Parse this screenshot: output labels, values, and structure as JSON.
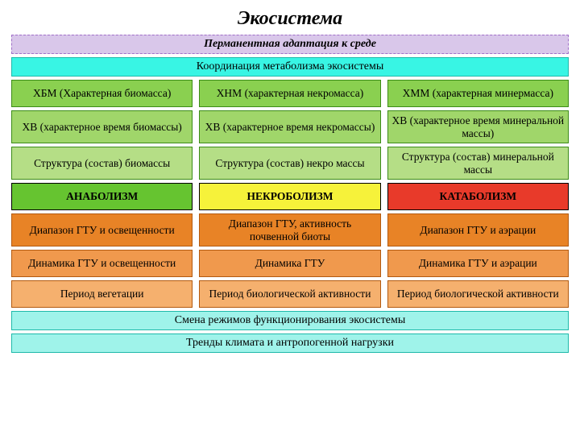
{
  "colors": {
    "lavender": "#d9c7ea",
    "cyanHeader": "#38f5e4",
    "cyanFooter": "#9ff3ea",
    "row1": "#8ad050",
    "row2": "#a0d66a",
    "row3": "#b5de86",
    "anabolism": "#66c430",
    "necrobolism": "#f6f23a",
    "katabolism": "#e83a2a",
    "row5": "#e88326",
    "row6": "#f0994d",
    "row7": "#f5b06e",
    "borderDark": "#000000",
    "borderLav": "#a070c8",
    "borderCyan": "#1fb9aa",
    "borderGreen": "#3c8c18",
    "borderOrange": "#b35a10"
  },
  "title": {
    "text": "Экосистема",
    "fontsize": 24
  },
  "subtitle": {
    "text": "Перманентная адаптация к среде",
    "italic": true,
    "bold": true
  },
  "coord": "Координация метаболизма экосистемы",
  "rows": {
    "r1": [
      "ХБМ (Характерная биомасса)",
      "ХНМ (характерная некромасса)",
      "ХММ (характерная минермасса)"
    ],
    "r2": [
      "ХВ (характерное время биомассы)",
      "ХВ (характерное время некромассы)",
      "ХВ (характерное время минеральной массы)"
    ],
    "r3": [
      "Структура (состав) биомассы",
      "Структура (состав) некро массы",
      "Структура (состав) минеральной массы"
    ],
    "proc": [
      "АНАБОЛИЗМ",
      "НЕКРОБОЛИЗМ",
      "КАТАБОЛИЗМ"
    ],
    "r5": [
      "Диапазон ГТУ и освещенности",
      "Диапазон ГТУ, активность почвенной биоты",
      "Диапазон ГТУ и аэрации"
    ],
    "r6": [
      "Динамика ГТУ и освещенности",
      "Динамика ГТУ",
      "Динамика ГТУ и аэрации"
    ],
    "r7": [
      "Период вегетации",
      "Период биологической активности",
      "Период биологической активности"
    ]
  },
  "footer1": "Смена режимов функционирования экосистемы",
  "footer2": "Тренды климата и антропогенной нагрузки"
}
